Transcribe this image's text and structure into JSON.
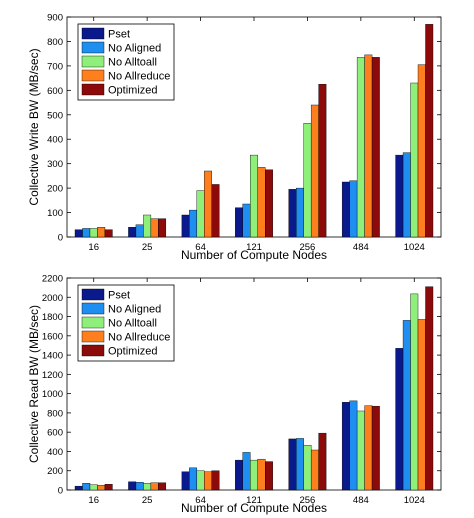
{
  "chart_data": [
    {
      "type": "bar",
      "xlabel": "Number of Compute Nodes",
      "ylabel": "Collective Write BW (MB/sec)",
      "categories": [
        "16",
        "25",
        "64",
        "121",
        "256",
        "484",
        "1024"
      ],
      "ylim": [
        0,
        900
      ],
      "yticks": [
        0,
        100,
        200,
        300,
        400,
        500,
        600,
        700,
        800,
        900
      ],
      "grid": false,
      "legend_position": "top-left",
      "series": [
        {
          "name": "Pset",
          "color": "#0a1a8c",
          "values": [
            30,
            40,
            90,
            120,
            195,
            225,
            335
          ]
        },
        {
          "name": "No Aligned",
          "color": "#1e8ff0",
          "values": [
            35,
            50,
            110,
            135,
            200,
            230,
            345
          ]
        },
        {
          "name": "No Alltoall",
          "color": "#8ef07a",
          "values": [
            35,
            90,
            190,
            335,
            465,
            735,
            630
          ]
        },
        {
          "name": "No Allreduce",
          "color": "#ff7f1e",
          "values": [
            40,
            75,
            270,
            285,
            540,
            745,
            705
          ]
        },
        {
          "name": "Optimized",
          "color": "#8c0a0a",
          "values": [
            30,
            75,
            215,
            275,
            625,
            735,
            870
          ]
        }
      ]
    },
    {
      "type": "bar",
      "xlabel": "Number of Compute Nodes",
      "ylabel": "Collective Read BW (MB/sec)",
      "categories": [
        "16",
        "25",
        "64",
        "121",
        "256",
        "484",
        "1024"
      ],
      "ylim": [
        0,
        2200
      ],
      "yticks": [
        0,
        200,
        400,
        600,
        800,
        1000,
        1200,
        1400,
        1600,
        1800,
        2000,
        2200
      ],
      "grid": false,
      "legend_position": "top-left",
      "series": [
        {
          "name": "Pset",
          "color": "#0a1a8c",
          "values": [
            40,
            85,
            190,
            310,
            530,
            910,
            1470
          ]
        },
        {
          "name": "No Aligned",
          "color": "#1e8ff0",
          "values": [
            70,
            80,
            230,
            390,
            535,
            925,
            1760
          ]
        },
        {
          "name": "No Alltoall",
          "color": "#8ef07a",
          "values": [
            55,
            70,
            200,
            310,
            465,
            820,
            2035
          ]
        },
        {
          "name": "No Allreduce",
          "color": "#ff7f1e",
          "values": [
            50,
            75,
            190,
            320,
            415,
            875,
            1770
          ]
        },
        {
          "name": "Optimized",
          "color": "#8c0a0a",
          "values": [
            60,
            75,
            200,
            295,
            590,
            870,
            2110
          ]
        }
      ]
    }
  ]
}
